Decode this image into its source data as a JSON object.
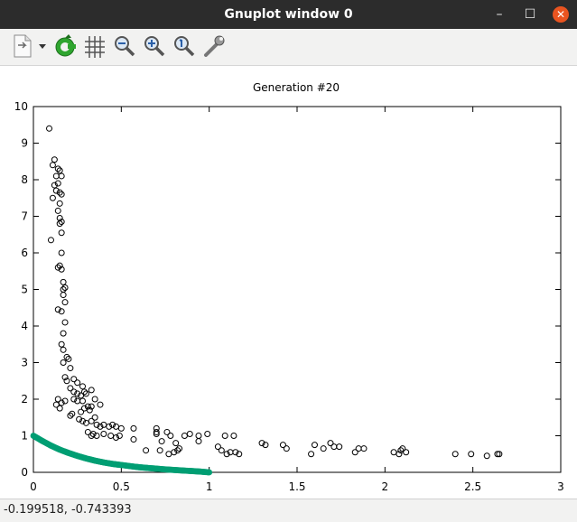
{
  "window": {
    "title": "Gnuplot window 0",
    "minimize_glyph": "–",
    "maximize_glyph": "☐",
    "close_glyph": "✕"
  },
  "toolbar": {
    "icons": [
      "export-icon",
      "dropdown-arrow-icon",
      "replot-icon",
      "grid-icon",
      "zoom-out-icon",
      "zoom-in-icon",
      "zoom-reset-icon",
      "settings-wrench-icon"
    ]
  },
  "chart_data": {
    "type": "scatter",
    "title": "Generation #20",
    "xlim": [
      0,
      3
    ],
    "ylim": [
      0,
      10
    ],
    "xticks": [
      "0",
      "0.5",
      "1",
      "1.5",
      "2",
      "2.5",
      "3"
    ],
    "yticks": [
      "0",
      "1",
      "2",
      "3",
      "4",
      "5",
      "6",
      "7",
      "8",
      "9",
      "10"
    ],
    "grid": false,
    "legend": "none",
    "series": [
      {
        "marker": "open-circle",
        "color": "#000000",
        "points": [
          [
            0.09,
            9.4
          ],
          [
            0.11,
            8.4
          ],
          [
            0.12,
            8.55
          ],
          [
            0.14,
            8.3
          ],
          [
            0.13,
            8.1
          ],
          [
            0.15,
            8.25
          ],
          [
            0.16,
            8.1
          ],
          [
            0.12,
            7.85
          ],
          [
            0.14,
            7.9
          ],
          [
            0.11,
            7.5
          ],
          [
            0.13,
            7.7
          ],
          [
            0.15,
            7.65
          ],
          [
            0.16,
            7.6
          ],
          [
            0.15,
            7.35
          ],
          [
            0.14,
            7.15
          ],
          [
            0.15,
            6.95
          ],
          [
            0.15,
            6.8
          ],
          [
            0.16,
            6.85
          ],
          [
            0.16,
            6.55
          ],
          [
            0.1,
            6.35
          ],
          [
            0.16,
            6.0
          ],
          [
            0.15,
            5.65
          ],
          [
            0.16,
            5.55
          ],
          [
            0.14,
            5.6
          ],
          [
            0.17,
            5.2
          ],
          [
            0.17,
            5.0
          ],
          [
            0.18,
            5.05
          ],
          [
            0.17,
            4.85
          ],
          [
            0.18,
            4.65
          ],
          [
            0.14,
            4.45
          ],
          [
            0.16,
            4.4
          ],
          [
            0.18,
            4.1
          ],
          [
            0.17,
            3.8
          ],
          [
            0.16,
            3.5
          ],
          [
            0.17,
            3.35
          ],
          [
            0.19,
            3.15
          ],
          [
            0.2,
            3.1
          ],
          [
            0.17,
            3.0
          ],
          [
            0.21,
            2.85
          ],
          [
            0.18,
            2.6
          ],
          [
            0.19,
            2.5
          ],
          [
            0.23,
            2.55
          ],
          [
            0.25,
            2.45
          ],
          [
            0.21,
            2.3
          ],
          [
            0.28,
            2.35
          ],
          [
            0.23,
            2.2
          ],
          [
            0.25,
            2.15
          ],
          [
            0.27,
            2.1
          ],
          [
            0.3,
            2.15
          ],
          [
            0.33,
            2.25
          ],
          [
            0.29,
            2.2
          ],
          [
            0.14,
            2.0
          ],
          [
            0.13,
            1.85
          ],
          [
            0.15,
            1.75
          ],
          [
            0.16,
            1.9
          ],
          [
            0.18,
            1.95
          ],
          [
            0.23,
            2.0
          ],
          [
            0.25,
            1.95
          ],
          [
            0.28,
            1.95
          ],
          [
            0.35,
            2.0
          ],
          [
            0.31,
            1.8
          ],
          [
            0.33,
            1.8
          ],
          [
            0.38,
            1.85
          ],
          [
            0.29,
            1.75
          ],
          [
            0.32,
            1.7
          ],
          [
            0.21,
            1.55
          ],
          [
            0.22,
            1.6
          ],
          [
            0.27,
            1.65
          ],
          [
            0.26,
            1.45
          ],
          [
            0.28,
            1.4
          ],
          [
            0.3,
            1.35
          ],
          [
            0.33,
            1.4
          ],
          [
            0.35,
            1.5
          ],
          [
            0.36,
            1.3
          ],
          [
            0.38,
            1.25
          ],
          [
            0.4,
            1.3
          ],
          [
            0.43,
            1.25
          ],
          [
            0.45,
            1.3
          ],
          [
            0.47,
            1.25
          ],
          [
            0.5,
            1.2
          ],
          [
            0.57,
            1.2
          ],
          [
            0.31,
            1.1
          ],
          [
            0.33,
            1.0
          ],
          [
            0.34,
            1.05
          ],
          [
            0.36,
            1.0
          ],
          [
            0.4,
            1.05
          ],
          [
            0.44,
            1.0
          ],
          [
            0.47,
            0.95
          ],
          [
            0.49,
            1.0
          ],
          [
            0.7,
            1.2
          ],
          [
            0.7,
            1.1
          ],
          [
            0.7,
            1.05
          ],
          [
            0.76,
            1.1
          ],
          [
            0.78,
            1.0
          ],
          [
            0.86,
            1.0
          ],
          [
            0.89,
            1.05
          ],
          [
            0.94,
            1.0
          ],
          [
            0.99,
            1.05
          ],
          [
            1.09,
            1.0
          ],
          [
            1.14,
            1.0
          ],
          [
            0.73,
            0.85
          ],
          [
            0.81,
            0.8
          ],
          [
            0.94,
            0.85
          ],
          [
            1.05,
            0.7
          ],
          [
            1.07,
            0.6
          ],
          [
            1.1,
            0.5
          ],
          [
            1.12,
            0.55
          ],
          [
            1.15,
            0.55
          ],
          [
            1.17,
            0.5
          ],
          [
            0.57,
            0.9
          ],
          [
            0.64,
            0.6
          ],
          [
            0.72,
            0.6
          ],
          [
            0.82,
            0.6
          ],
          [
            0.8,
            0.55
          ],
          [
            0.77,
            0.5
          ],
          [
            0.83,
            0.65
          ],
          [
            1.3,
            0.8
          ],
          [
            1.32,
            0.75
          ],
          [
            1.42,
            0.75
          ],
          [
            1.44,
            0.65
          ],
          [
            1.58,
            0.5
          ],
          [
            1.6,
            0.75
          ],
          [
            1.65,
            0.65
          ],
          [
            1.69,
            0.8
          ],
          [
            1.71,
            0.7
          ],
          [
            1.74,
            0.7
          ],
          [
            1.83,
            0.55
          ],
          [
            1.85,
            0.65
          ],
          [
            1.88,
            0.65
          ],
          [
            2.05,
            0.55
          ],
          [
            2.08,
            0.5
          ],
          [
            2.09,
            0.6
          ],
          [
            2.1,
            0.65
          ],
          [
            2.12,
            0.55
          ],
          [
            2.4,
            0.5
          ],
          [
            2.49,
            0.5
          ],
          [
            2.58,
            0.45
          ],
          [
            2.64,
            0.5
          ],
          [
            2.65,
            0.5
          ]
        ]
      },
      {
        "marker": "filled-circle-dense",
        "color": "#009e73",
        "points": [
          [
            0.0,
            1.0
          ],
          [
            0.05,
            0.86
          ],
          [
            0.1,
            0.73
          ],
          [
            0.15,
            0.62
          ],
          [
            0.2,
            0.53
          ],
          [
            0.25,
            0.45
          ],
          [
            0.3,
            0.38
          ],
          [
            0.35,
            0.32
          ],
          [
            0.4,
            0.27
          ],
          [
            0.45,
            0.23
          ],
          [
            0.5,
            0.2
          ],
          [
            0.55,
            0.17
          ],
          [
            0.6,
            0.14
          ],
          [
            0.65,
            0.12
          ],
          [
            0.7,
            0.1
          ],
          [
            0.75,
            0.08
          ],
          [
            0.8,
            0.065
          ],
          [
            0.85,
            0.05
          ],
          [
            0.9,
            0.035
          ],
          [
            0.95,
            0.02
          ],
          [
            1.0,
            0.0
          ]
        ]
      }
    ]
  },
  "status": {
    "coordinates": "-0.199518, -0.743393"
  }
}
